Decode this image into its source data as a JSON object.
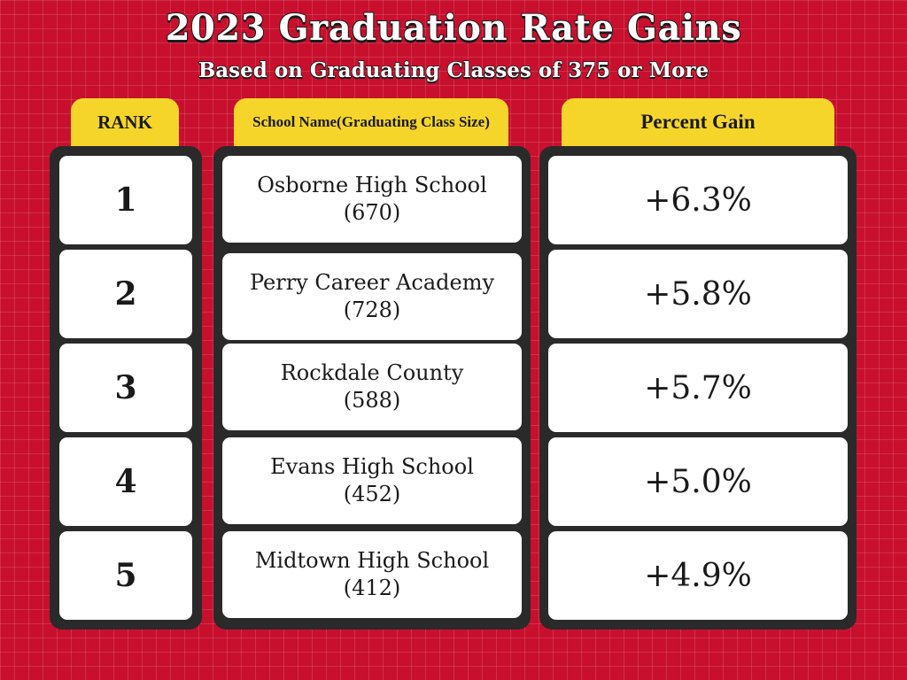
{
  "header": {
    "title": "2023 Graduation Rate Gains",
    "subtitle": "Based on Graduating Classes of 375 or More"
  },
  "columns": {
    "rank": "RANK",
    "school_line1": "School Name",
    "school_line2": "(Graduating Class Size)",
    "gain": "Percent Gain"
  },
  "rows": [
    {
      "rank": "1",
      "school": "Osborne High School",
      "size": "(670)",
      "gain": "+6.3%"
    },
    {
      "rank": "2",
      "school": "Perry Career Academy",
      "size": "(728)",
      "gain": "+5.8%"
    },
    {
      "rank": "3",
      "school": "Rockdale County",
      "size": "(588)",
      "gain": "+5.7%"
    },
    {
      "rank": "4",
      "school": "Evans High School",
      "size": "(452)",
      "gain": "+5.0%"
    },
    {
      "rank": "5",
      "school": "Midtown High School",
      "size": "(412)",
      "gain": "+4.9%"
    }
  ],
  "colors": {
    "background": "#c8102e",
    "tab": "#f6d52a",
    "panel": "#2a2a2a",
    "cell": "#ffffff"
  }
}
